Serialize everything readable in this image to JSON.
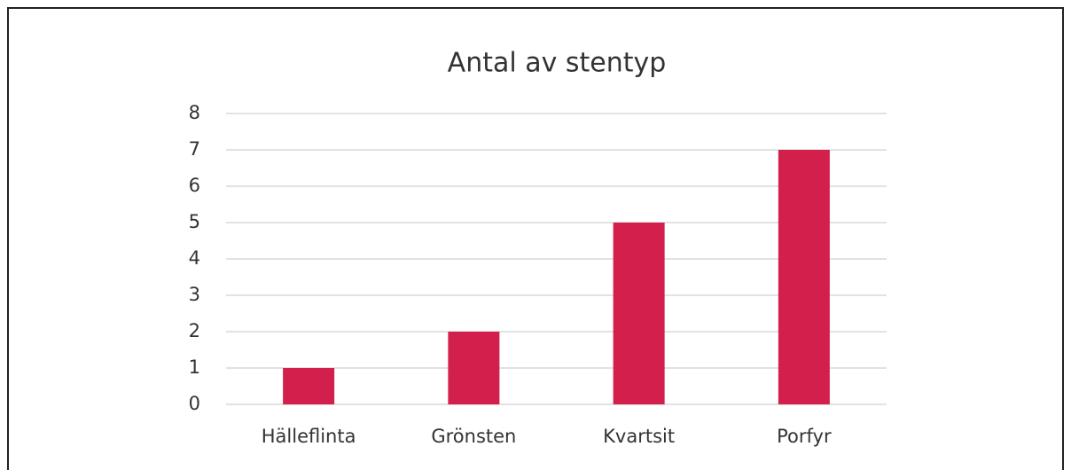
{
  "chart_data": {
    "type": "bar",
    "title": "Antal av stentyp",
    "categories": [
      "Hälleflinta",
      "Grönsten",
      "Kvartsit",
      "Porfyr"
    ],
    "values": [
      1,
      2,
      5,
      7
    ],
    "color": "#d31f4b",
    "ylim": [
      0,
      8
    ],
    "yticks": [
      0,
      1,
      2,
      3,
      4,
      5,
      6,
      7,
      8
    ],
    "grid": true
  }
}
